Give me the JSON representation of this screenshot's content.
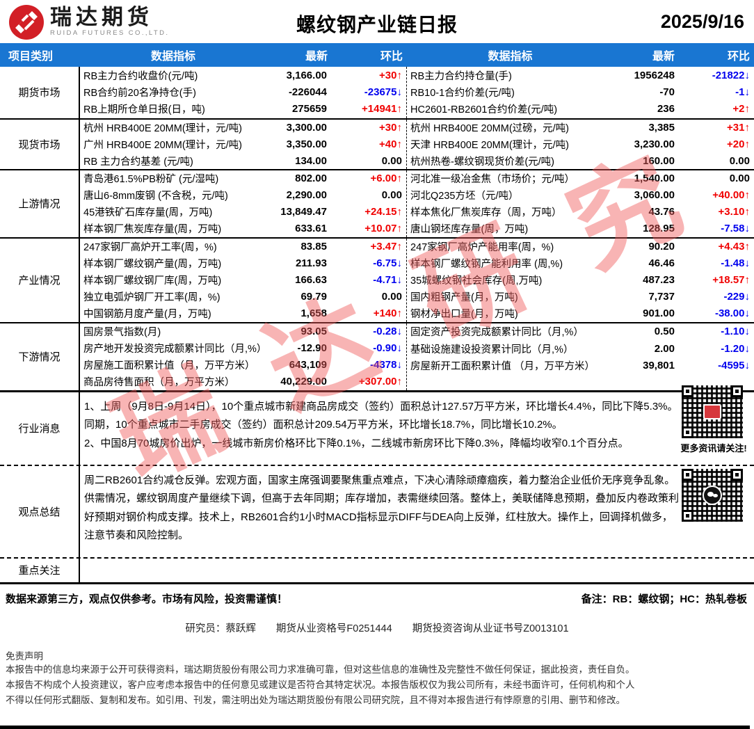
{
  "header": {
    "logo_cn": "瑞达期货",
    "logo_en": "RUIDA FUTURES CO.,LTD.",
    "title": "螺纹钢产业链日报",
    "date": "2025/9/16"
  },
  "table_header": {
    "category": "项目类别",
    "indicator": "数据指标",
    "latest": "最新",
    "chg": "环比"
  },
  "colors": {
    "header_bg": "#1976d2",
    "up_red": "#f00000",
    "down_blue": "#0000ee",
    "watermark_pink": "rgba(239,88,88,0.45)"
  },
  "watermark_text": "瑞达研究",
  "sections": [
    {
      "name": "期货市场",
      "rows_left": [
        {
          "label": "RB主力合约收盘价(元/吨)",
          "value": "3,166.00",
          "change": "+30",
          "dir": "up"
        },
        {
          "label": "RB合约前20名净持仓(手)",
          "value": "-226044",
          "change": "-23675",
          "dir": "down"
        },
        {
          "label": "RB上期所仓单日报(日，吨)",
          "value": "275659",
          "change": "+14941",
          "dir": "up"
        }
      ],
      "rows_right": [
        {
          "label": "RB主力合约持仓量(手)",
          "value": "1956248",
          "change": "-21822",
          "dir": "down"
        },
        {
          "label": "RB10-1合约价差(元/吨)",
          "value": "-70",
          "change": "-1",
          "dir": "down"
        },
        {
          "label": "HC2601-RB2601合约价差(元/吨)",
          "value": "236",
          "change": "+2",
          "dir": "up"
        }
      ]
    },
    {
      "name": "现货市场",
      "rows_left": [
        {
          "label": "杭州 HRB400E 20MM(理计，元/吨)",
          "value": "3,300.00",
          "change": "+30",
          "dir": "up"
        },
        {
          "label": "广州 HRB400E 20MM(理计，元/吨)",
          "value": "3,350.00",
          "change": "+40",
          "dir": "up"
        },
        {
          "label": "RB 主力合约基差 (元/吨)",
          "value": "134.00",
          "change": "0.00",
          "dir": "flat"
        }
      ],
      "rows_right": [
        {
          "label": "杭州 HRB400E 20MM(过磅，元/吨)",
          "value": "3,385",
          "change": "+31",
          "dir": "up"
        },
        {
          "label": "天津 HRB400E 20MM(理计，元/吨)",
          "value": "3,230.00",
          "change": "+20",
          "dir": "up"
        },
        {
          "label": "杭州热卷-螺纹钢现货价差(元/吨)",
          "value": "160.00",
          "change": "0.00",
          "dir": "flat"
        }
      ]
    },
    {
      "name": "上游情况",
      "rows_left": [
        {
          "label": "青岛港61.5%PB粉矿 (元/湿吨)",
          "value": "802.00",
          "change": "+6.00",
          "dir": "up"
        },
        {
          "label": "唐山6-8mm废钢 (不含税，元/吨)",
          "value": "2,290.00",
          "change": "0.00",
          "dir": "flat"
        },
        {
          "label": "45港铁矿石库存量(周，万吨)",
          "value": "13,849.47",
          "change": "+24.15",
          "dir": "up"
        },
        {
          "label": "样本钢厂焦炭库存量(周，万吨)",
          "value": "633.61",
          "change": "+10.07",
          "dir": "up"
        }
      ],
      "rows_right": [
        {
          "label": "河北准一级冶金焦（市场价；元/吨）",
          "value": "1,540.00",
          "change": "0.00",
          "dir": "flat"
        },
        {
          "label": "河北Q235方坯（元/吨）",
          "value": "3,060.00",
          "change": "+40.00",
          "dir": "up"
        },
        {
          "label": "样本焦化厂焦炭库存（周，万吨）",
          "value": "43.76",
          "change": "+3.10",
          "dir": "up"
        },
        {
          "label": "唐山钢坯库存量(周，万吨)",
          "value": "128.95",
          "change": "-7.58",
          "dir": "down"
        }
      ]
    },
    {
      "name": "产业情况",
      "rows_left": [
        {
          "label": "247家钢厂高炉开工率(周，%)",
          "value": "83.85",
          "change": "+3.47",
          "dir": "up"
        },
        {
          "label": "样本钢厂螺纹钢产量(周，万吨)",
          "value": "211.93",
          "change": "-6.75",
          "dir": "down"
        },
        {
          "label": "样本钢厂螺纹钢厂库(周，万吨)",
          "value": "166.63",
          "change": "-4.71",
          "dir": "down"
        },
        {
          "label": "独立电弧炉钢厂开工率(周，%)",
          "value": "69.79",
          "change": "0.00",
          "dir": "flat"
        },
        {
          "label": "中国钢筋月度产量(月，万吨)",
          "value": "1,658",
          "change": "+140",
          "dir": "up"
        }
      ],
      "rows_right": [
        {
          "label": "247家钢厂高炉产能用率(周，%)",
          "value": "90.20",
          "change": "+4.43",
          "dir": "up"
        },
        {
          "label": "样本钢厂螺纹钢产能利用率 (周,%)",
          "value": "46.46",
          "change": "-1.48",
          "dir": "down"
        },
        {
          "label": "35城螺纹钢社会库存(周,万吨)",
          "value": "487.23",
          "change": "+18.57",
          "dir": "up"
        },
        {
          "label": "国内粗钢产量(月，万吨)",
          "value": "7,737",
          "change": "-229",
          "dir": "down"
        },
        {
          "label": "钢材净出口量(月，万吨)",
          "value": "901.00",
          "change": "-38.00",
          "dir": "down"
        }
      ]
    },
    {
      "name": "下游情况",
      "rows_left": [
        {
          "label": "国房景气指数(月)",
          "value": "93.05",
          "change": "-0.28",
          "dir": "down"
        },
        {
          "label": "房产地开发投资完成额累计同比（月,%）",
          "value": "-12.90",
          "change": "-0.90",
          "dir": "down"
        },
        {
          "label": "房屋施工面积累计值（月，万平方米）",
          "value": "643,109",
          "change": "-4378",
          "dir": "down"
        },
        {
          "label": "商品房待售面积（月，万平方米）",
          "value": "40,229.00",
          "change": "+307.00",
          "dir": "up"
        }
      ],
      "rows_right": [
        {
          "label": "固定资产投资完成额累计同比（月,%）",
          "value": "0.50",
          "change": "-1.10",
          "dir": "down"
        },
        {
          "label": "基础设施建设投资累计同比（月,%）",
          "value": "2.00",
          "change": "-1.20",
          "dir": "down"
        },
        {
          "label": "房屋新开工面积累计值 （月，万平方米）",
          "value": "39,801",
          "change": "-4595",
          "dir": "down"
        }
      ]
    }
  ],
  "news": {
    "name": "行业消息",
    "lines": [
      "1、上周（9月8日-9月14日），10个重点城市新建商品房成交（签约）面积总计127.57万平方米，环比增长4.4%，同比下降5.3%。同期，10个重点城市二手房成交（签约）面积总计209.54万平方米，环比增长18.7%，同比增长10.2%。",
      "2、中国8月70城房价出炉，一线城市新房价格环比下降0.1%，二线城市新房环比下降0.3%，降幅均收窄0.1个百分点。"
    ]
  },
  "summary": {
    "name": "观点总结",
    "text": "周二RB2601合约减仓反弹。宏观方面，国家主席强调要聚焦重点难点，下决心清除顽瘴痼疾，着力整治企业低价无序竞争乱象。供需情况，螺纹钢周度产量继续下调，但高于去年同期；库存增加，表需继续回落。整体上，美联储降息预期，叠加反内卷政策利好预期对钢价构成支撑。技术上，RB2601合约1小时MACD指标显示DIFF与DEA向上反弹，红柱放大。操作上，回调择机做多，注意节奏和风险控制。"
  },
  "focus": {
    "name": "重点关注",
    "text": ""
  },
  "qr": {
    "caption": "更多资讯请关注!"
  },
  "footer": {
    "risk_line": "数据来源第三方，观点仅供参考。市场有风险，投资需谨慎！",
    "note_line": "备注：RB：螺纹钢；HC：热轧卷板",
    "researcher_line": "研究员：蔡跃辉　　期货从业资格号F0251444　　期货投资咨询从业证书号Z0013101",
    "disclaimer_title": "免责声明",
    "disclaimer_lines": [
      "本报告中的信息均来源于公开可获得资料，瑞达期货股份有限公司力求准确可靠，但对这些信息的准确性及完整性不做任何保证，据此投资，责任自负。",
      "本报告不构成个人投资建议，客户应考虑本报告中的任何意见或建议是否符合其特定状况。本报告版权仅为我公司所有，未经书面许可，任何机构和个人",
      "不得以任何形式翻版、复制和发布。如引用、刊发，需注明出处为瑞达期货股份有限公司研究院，且不得对本报告进行有悖原意的引用、删节和修改。"
    ]
  }
}
